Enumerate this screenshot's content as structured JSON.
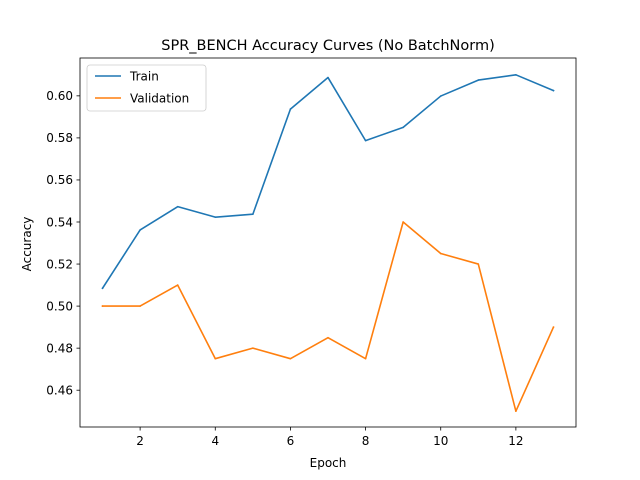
{
  "chart_data": {
    "type": "line",
    "title": "SPR_BENCH Accuracy Curves (No BatchNorm)",
    "xlabel": "Epoch",
    "ylabel": "Accuracy",
    "x": [
      1,
      2,
      3,
      4,
      5,
      6,
      7,
      8,
      9,
      10,
      11,
      12,
      13
    ],
    "xlim": [
      0.4,
      13.6
    ],
    "ylim": [
      0.4425,
      0.618
    ],
    "xticks": [
      2,
      4,
      6,
      8,
      10,
      12
    ],
    "xtick_labels": [
      "2",
      "4",
      "6",
      "8",
      "10",
      "12"
    ],
    "yticks": [
      0.46,
      0.48,
      0.5,
      0.52,
      0.54,
      0.56,
      0.58,
      0.6
    ],
    "ytick_labels": [
      "0.46",
      "0.48",
      "0.50",
      "0.52",
      "0.54",
      "0.56",
      "0.58",
      "0.60"
    ],
    "grid": false,
    "legend_position": "top-left",
    "series": [
      {
        "name": "Train",
        "color": "#1f77b4",
        "values": [
          0.5085,
          0.5362,
          0.5473,
          0.5423,
          0.5437,
          0.5937,
          0.6087,
          0.5787,
          0.585,
          0.5999,
          0.6075,
          0.61,
          0.6025
        ]
      },
      {
        "name": "Validation",
        "color": "#ff7f0e",
        "values": [
          0.5,
          0.5,
          0.51,
          0.475,
          0.48,
          0.475,
          0.485,
          0.475,
          0.54,
          0.525,
          0.52,
          0.45,
          0.49
        ]
      }
    ]
  }
}
